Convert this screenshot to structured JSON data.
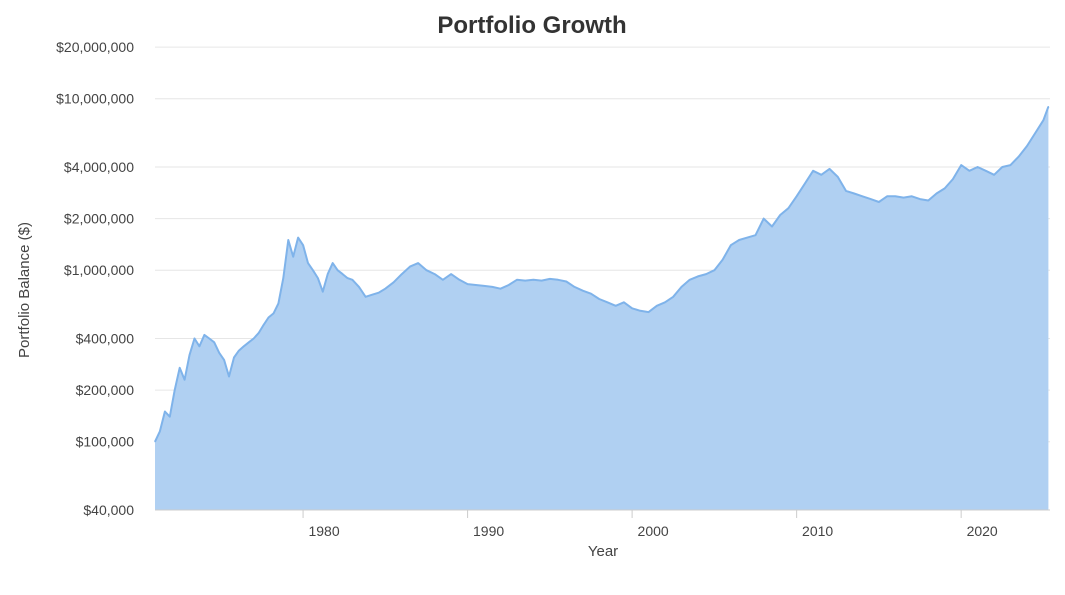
{
  "chart_data": {
    "type": "area",
    "title": "Portfolio Growth",
    "xlabel": "Year",
    "ylabel": "Portfolio Balance ($)",
    "xlim": [
      1971,
      2025.4
    ],
    "ylim": [
      40000,
      22000000
    ],
    "yscale": "log",
    "grid": true,
    "legend": "none",
    "x_ticks": [
      1980,
      1990,
      2000,
      2010,
      2020
    ],
    "x_tick_labels": [
      "1980",
      "1990",
      "2000",
      "2010",
      "2020"
    ],
    "y_ticks": [
      40000,
      100000,
      200000,
      400000,
      1000000,
      2000000,
      4000000,
      10000000,
      20000000
    ],
    "y_tick_labels": [
      "$40,000",
      "$100,000",
      "$200,000",
      "$400,000",
      "$1,000,000",
      "$2,000,000",
      "$4,000,000",
      "$10,000,000",
      "$20,000,000"
    ],
    "colors": {
      "line": "#7fb3ea",
      "fill": "#b0d0f2"
    },
    "series": [
      {
        "x": [
          1971.0,
          1971.3,
          1971.6,
          1971.9,
          1972.2,
          1972.5,
          1972.8,
          1973.1,
          1973.4,
          1973.7,
          1974.0,
          1974.3,
          1974.6,
          1974.9,
          1975.2,
          1975.5,
          1975.8,
          1976.1,
          1976.4,
          1976.7,
          1977.0,
          1977.3,
          1977.6,
          1977.9,
          1978.2,
          1978.5,
          1978.8,
          1979.1,
          1979.4,
          1979.7,
          1980.0,
          1980.3,
          1980.6,
          1980.9,
          1981.2,
          1981.5,
          1981.8,
          1982.1,
          1982.4,
          1982.7,
          1983.0,
          1983.4,
          1983.8,
          1984.2,
          1984.6,
          1985.0,
          1985.5,
          1986.0,
          1986.5,
          1987.0,
          1987.5,
          1988.0,
          1988.5,
          1989.0,
          1989.5,
          1990.0,
          1990.5,
          1991.0,
          1991.5,
          1992.0,
          1992.5,
          1993.0,
          1993.5,
          1994.0,
          1994.5,
          1995.0,
          1995.5,
          1996.0,
          1996.5,
          1997.0,
          1997.5,
          1998.0,
          1998.5,
          1999.0,
          1999.5,
          2000.0,
          2000.5,
          2001.0,
          2001.5,
          2002.0,
          2002.5,
          2003.0,
          2003.5,
          2004.0,
          2004.5,
          2005.0,
          2005.5,
          2006.0,
          2006.5,
          2007.0,
          2007.5,
          2008.0,
          2008.5,
          2009.0,
          2009.5,
          2010.0,
          2010.5,
          2011.0,
          2011.5,
          2012.0,
          2012.5,
          2013.0,
          2013.5,
          2014.0,
          2014.5,
          2015.0,
          2015.5,
          2016.0,
          2016.5,
          2017.0,
          2017.5,
          2018.0,
          2018.5,
          2019.0,
          2019.5,
          2020.0,
          2020.5,
          2021.0,
          2021.5,
          2022.0,
          2022.5,
          2023.0,
          2023.5,
          2024.0,
          2024.5,
          2025.0,
          2025.3
        ],
        "values": [
          100000,
          115000,
          150000,
          140000,
          200000,
          270000,
          230000,
          320000,
          400000,
          360000,
          420000,
          400000,
          380000,
          330000,
          300000,
          240000,
          310000,
          340000,
          360000,
          380000,
          400000,
          430000,
          480000,
          530000,
          560000,
          640000,
          900000,
          1500000,
          1200000,
          1550000,
          1400000,
          1100000,
          1000000,
          900000,
          750000,
          950000,
          1100000,
          1000000,
          950000,
          900000,
          880000,
          800000,
          700000,
          720000,
          740000,
          780000,
          850000,
          950000,
          1050000,
          1100000,
          1000000,
          950000,
          880000,
          950000,
          880000,
          830000,
          820000,
          810000,
          800000,
          780000,
          820000,
          880000,
          870000,
          880000,
          870000,
          890000,
          880000,
          860000,
          800000,
          760000,
          730000,
          680000,
          650000,
          620000,
          650000,
          600000,
          580000,
          570000,
          620000,
          650000,
          700000,
          800000,
          880000,
          920000,
          950000,
          1000000,
          1150000,
          1400000,
          1500000,
          1550000,
          1600000,
          2000000,
          1800000,
          2100000,
          2300000,
          2700000,
          3200000,
          3800000,
          3600000,
          3900000,
          3500000,
          2900000,
          2800000,
          2700000,
          2600000,
          2500000,
          2700000,
          2700000,
          2650000,
          2700000,
          2600000,
          2550000,
          2800000,
          3000000,
          3400000,
          4100000,
          3800000,
          4000000,
          3800000,
          3600000,
          4000000,
          4100000,
          4600000,
          5300000,
          6300000,
          7500000,
          9000000
        ]
      }
    ]
  }
}
